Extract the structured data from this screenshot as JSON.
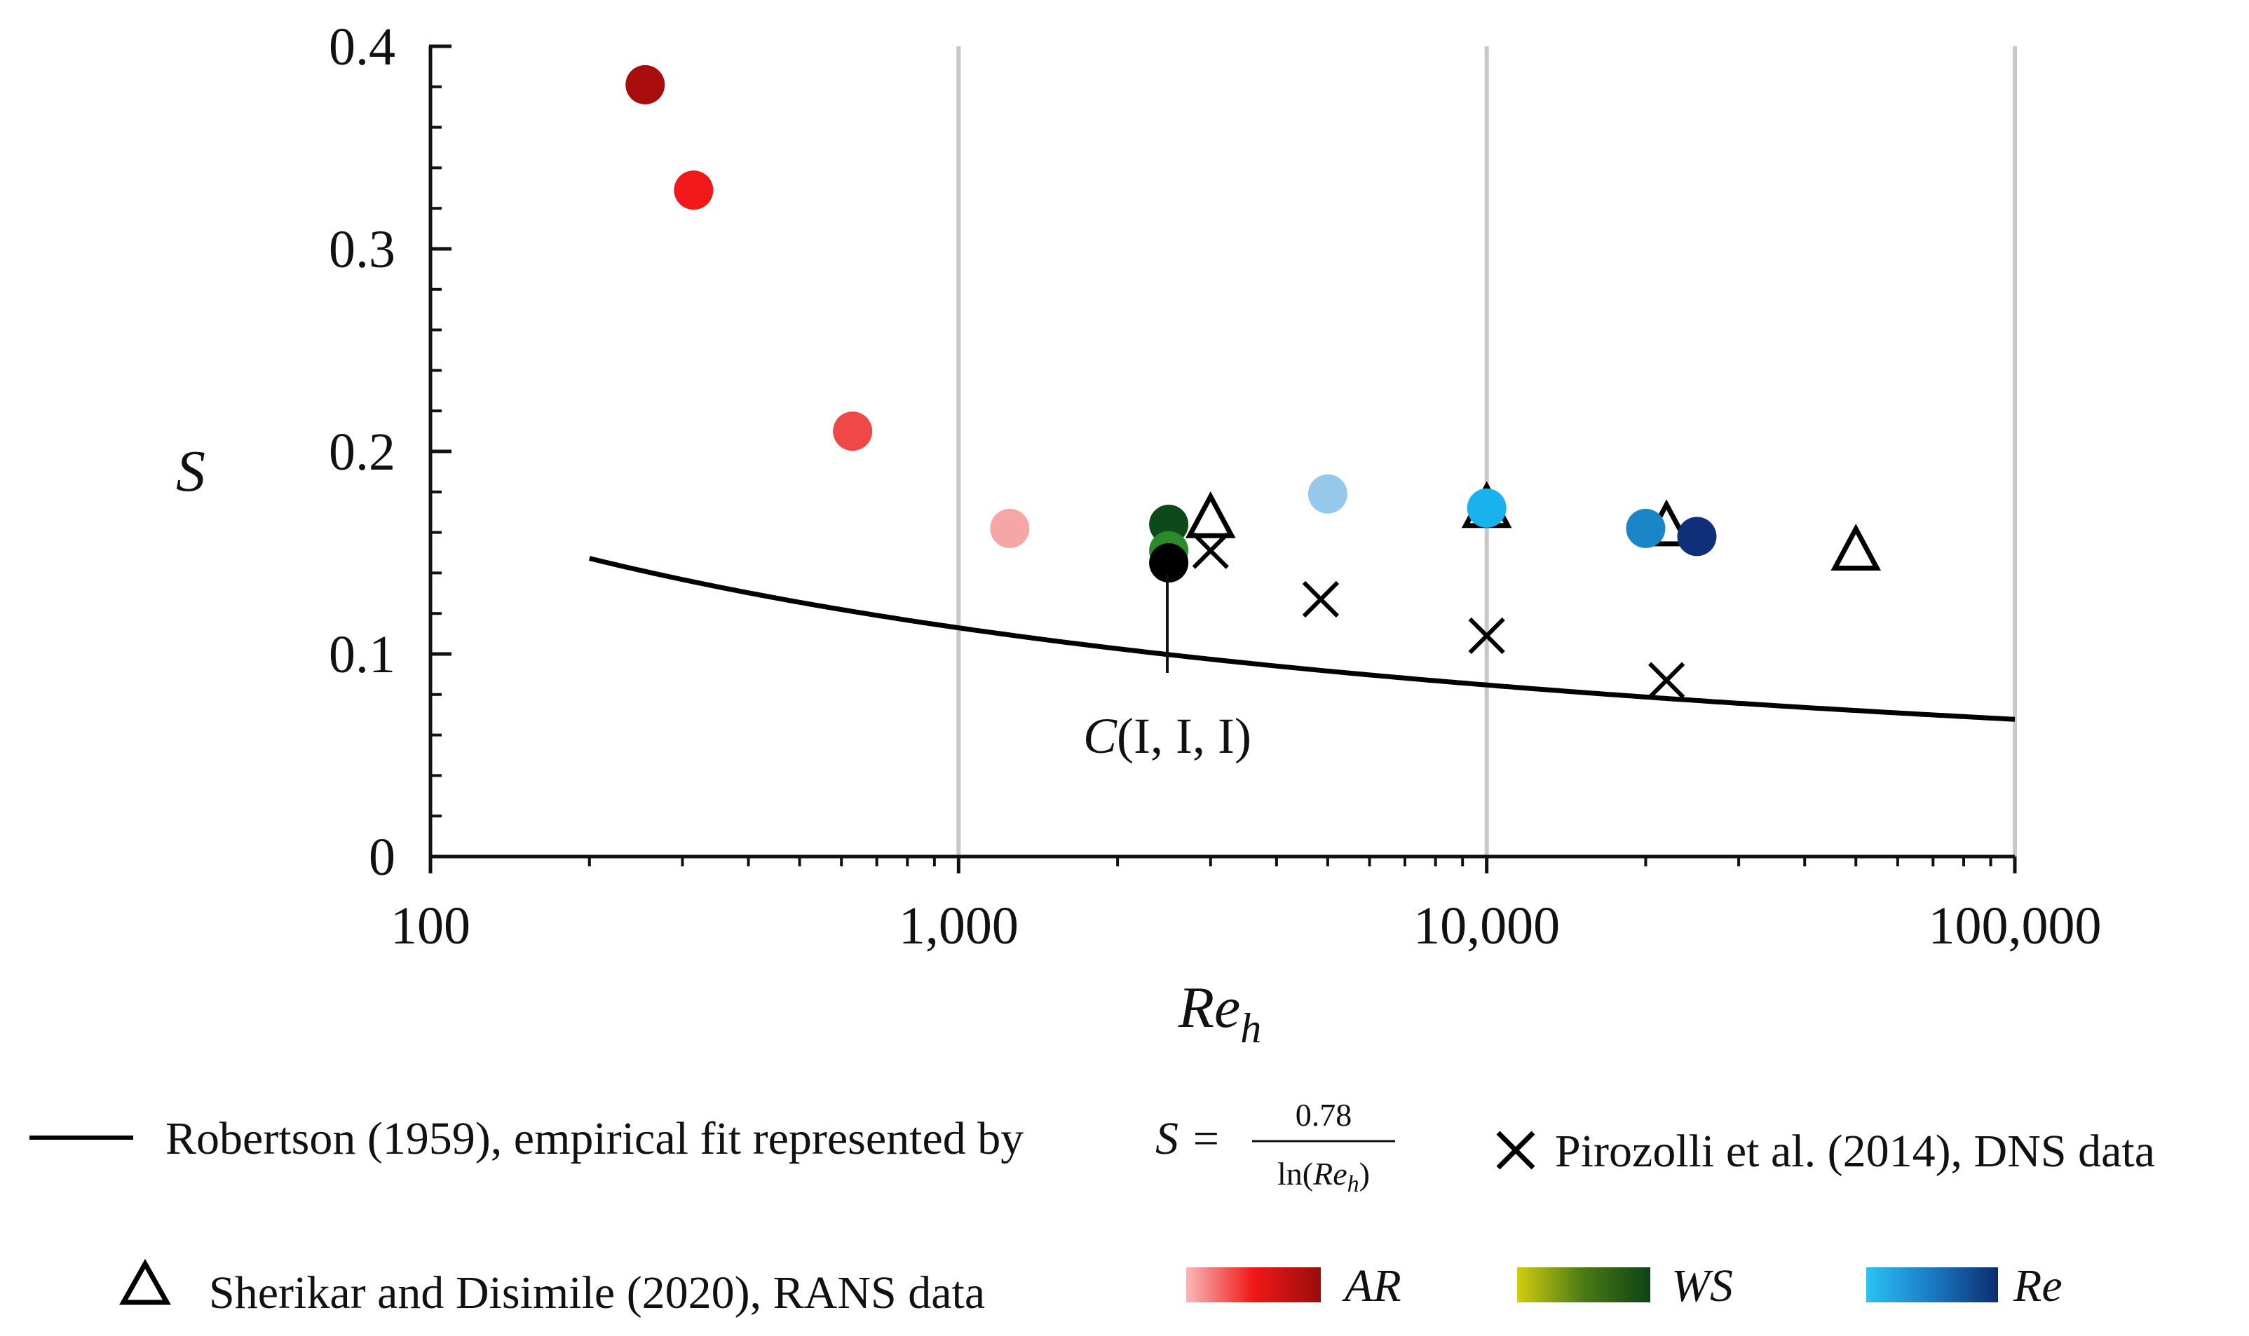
{
  "chart_data": {
    "type": "scatter",
    "xscale": "log",
    "xlim": [
      100,
      100000
    ],
    "ylim": [
      0,
      0.4
    ],
    "xlabel": "Re",
    "xlabel_sub": "h",
    "ylabel": "S",
    "x_ticks": [
      {
        "value": 100,
        "label": "100"
      },
      {
        "value": 1000,
        "label": "1,000"
      },
      {
        "value": 10000,
        "label": "10,000"
      },
      {
        "value": 100000,
        "label": "100,000"
      }
    ],
    "y_ticks": [
      {
        "value": 0,
        "label": "0"
      },
      {
        "value": 0.1,
        "label": "0.1"
      },
      {
        "value": 0.2,
        "label": "0.2"
      },
      {
        "value": 0.3,
        "label": "0.3"
      },
      {
        "value": 0.4,
        "label": "0.4"
      }
    ],
    "grid": "vertical major",
    "series": [
      {
        "name": "robertson-fit",
        "kind": "line",
        "formula_coefficient": 0.78,
        "x_range": [
          200,
          100000
        ],
        "color": "#000000"
      },
      {
        "name": "pirozolli-dns",
        "kind": "x-marker",
        "color": "#000000",
        "points": [
          {
            "x": 3000,
            "y": 0.151
          },
          {
            "x": 4850,
            "y": 0.127
          },
          {
            "x": 10000,
            "y": 0.109
          },
          {
            "x": 21900,
            "y": 0.087
          }
        ]
      },
      {
        "name": "sherikar-rans",
        "kind": "triangle",
        "color": "#000000",
        "points": [
          {
            "x": 3000,
            "y": 0.166
          },
          {
            "x": 10000,
            "y": 0.171
          },
          {
            "x": 21900,
            "y": 0.162
          },
          {
            "x": 50000,
            "y": 0.15
          }
        ]
      },
      {
        "name": "ar-variation",
        "kind": "circle",
        "points": [
          {
            "x": 255,
            "y": 0.381,
            "color": "#a80c0c"
          },
          {
            "x": 315,
            "y": 0.329,
            "color": "#f01818"
          },
          {
            "x": 630,
            "y": 0.21,
            "color": "#f04848"
          },
          {
            "x": 1250,
            "y": 0.162,
            "color": "#f6a6a6"
          }
        ]
      },
      {
        "name": "ws-variation",
        "kind": "circle",
        "points": [
          {
            "x": 2500,
            "y": 0.164,
            "color": "#0d4a1a"
          },
          {
            "x": 2500,
            "y": 0.151,
            "color": "#2c8a2c"
          }
        ]
      },
      {
        "name": "re-variation",
        "kind": "circle",
        "points": [
          {
            "x": 5000,
            "y": 0.179,
            "color": "#96c8ec"
          },
          {
            "x": 10000,
            "y": 0.172,
            "color": "#1ab2ee"
          },
          {
            "x": 20000,
            "y": 0.162,
            "color": "#1a86c8"
          },
          {
            "x": 25000,
            "y": 0.158,
            "color": "#0f2f78"
          }
        ]
      },
      {
        "name": "baseline-case",
        "kind": "circle",
        "points": [
          {
            "x": 2500,
            "y": 0.145,
            "color": "#000000"
          }
        ]
      }
    ],
    "annotations": [
      {
        "text": "(I, I, I)",
        "prefix_italic": "C",
        "x": 2500,
        "y": 0.145
      }
    ],
    "legend": {
      "position": "bottom",
      "robertson_label": "Robertson (1959), empirical  fit represented by ",
      "robertson_formula_lhs": "S =",
      "robertson_formula_num": "0.78",
      "robertson_formula_den_prefix": "ln(",
      "robertson_formula_den_var": "Re",
      "robertson_formula_den_sub": "h",
      "robertson_formula_den_suffix": ")",
      "pirozolli_label": "Pirozolli  et al. (2014), DNS data",
      "sherikar_label": "Sherikar and Disimile  (2020), RANS data",
      "gradients": [
        {
          "label": "AR",
          "from": "#f8b8b8",
          "mid": "#f01818",
          "to": "#9c0c0c"
        },
        {
          "label": "WS",
          "from": "#d2cc10",
          "mid": "#4a7a14",
          "to": "#0e4216"
        },
        {
          "label": "Re",
          "from": "#2cc2f4",
          "mid": "#1a7ac4",
          "to": "#0e2c6e"
        }
      ]
    }
  }
}
